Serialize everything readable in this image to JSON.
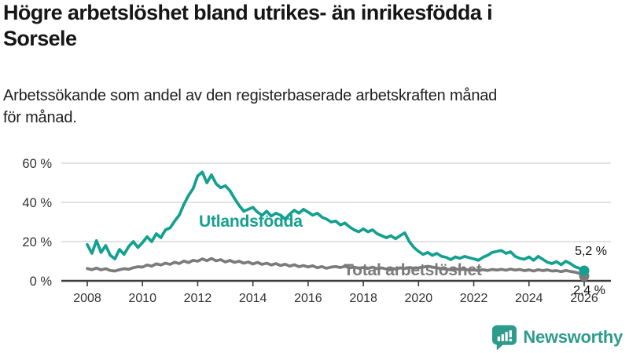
{
  "chart_data": {
    "type": "line",
    "title": "Högre arbetslöshet bland utrikes- än inrikesfödda i\nSorsele",
    "subtitle": "Arbetssökande som andel av den registerbaserade arbetskraften månad\nför månad.",
    "xlabel": "",
    "ylabel": "",
    "ylim": [
      0,
      62
    ],
    "xlim": [
      2007,
      2027
    ],
    "grid": true,
    "legend_position": "inline-labels-on-chart",
    "x_unit": "year-month",
    "x_start": 2008,
    "x_step_months": 2,
    "x_tick_values": [
      2008,
      2010,
      2012,
      2014,
      2016,
      2018,
      2020,
      2022,
      2024,
      2026
    ],
    "x_tick_labels": [
      "2008",
      "2010",
      "2012",
      "2014",
      "2016",
      "2018",
      "2020",
      "2022",
      "2024",
      "2026"
    ],
    "y_tick_values": [
      0,
      20,
      40,
      60
    ],
    "y_tick_labels": [
      "0 %",
      "20 %",
      "40 %",
      "60 %"
    ],
    "series": [
      {
        "name": "Utlandsfödda",
        "color": "#14A090",
        "end_label": "5,2 %",
        "end_value": 5.2,
        "values": [
          18.5,
          14.0,
          20.5,
          14.5,
          18.0,
          13.0,
          11.2,
          16.0,
          13.5,
          17.5,
          20.0,
          17.0,
          19.5,
          22.5,
          20.0,
          24.0,
          22.0,
          26.0,
          27.0,
          30.5,
          33.5,
          39.0,
          43.5,
          47.0,
          53.5,
          55.5,
          50.0,
          54.0,
          49.5,
          47.5,
          48.5,
          46.0,
          42.0,
          38.5,
          35.5,
          36.5,
          37.5,
          35.0,
          33.5,
          35.5,
          33.0,
          34.5,
          33.5,
          31.5,
          34.0,
          36.0,
          34.5,
          36.5,
          35.0,
          33.5,
          34.5,
          32.5,
          31.5,
          30.0,
          30.5,
          28.5,
          29.5,
          27.5,
          26.0,
          25.0,
          26.5,
          25.0,
          26.0,
          24.0,
          23.0,
          22.0,
          23.0,
          21.5,
          23.0,
          24.5,
          20.0,
          17.0,
          15.0,
          13.5,
          14.5,
          13.0,
          14.0,
          12.5,
          12.0,
          10.8,
          12.2,
          11.5,
          12.5,
          11.8,
          11.2,
          10.5,
          12.0,
          13.0,
          14.5,
          15.0,
          15.5,
          14.0,
          14.8,
          12.5,
          11.5,
          11.0,
          12.2,
          10.5,
          12.5,
          11.0,
          9.5,
          8.8,
          9.8,
          8.2,
          10.0,
          8.8,
          7.2,
          6.4,
          5.2
        ]
      },
      {
        "name": "Total arbetslöshet",
        "color": "#7b7b7b",
        "end_label": "2,4 %",
        "end_value": 2.4,
        "values": [
          6.3,
          5.7,
          6.5,
          5.6,
          6.2,
          5.3,
          5.0,
          5.7,
          6.2,
          5.9,
          6.7,
          7.2,
          7.0,
          8.1,
          7.5,
          8.7,
          8.1,
          9.0,
          8.4,
          9.5,
          8.8,
          10.1,
          9.3,
          10.5,
          10.0,
          11.2,
          10.3,
          11.4,
          10.2,
          10.8,
          9.6,
          10.4,
          9.4,
          10.0,
          9.0,
          9.6,
          8.6,
          9.4,
          8.4,
          9.0,
          8.1,
          8.8,
          7.8,
          8.5,
          7.5,
          8.2,
          7.2,
          7.8,
          7.1,
          7.7,
          6.7,
          7.3,
          6.4,
          7.0,
          7.3,
          6.8,
          7.4,
          6.6,
          7.0,
          6.4,
          6.8,
          6.3,
          7.0,
          6.2,
          6.6,
          6.0,
          6.4,
          6.0,
          6.6,
          6.2,
          6.8,
          6.4,
          6.6,
          7.0,
          7.4,
          7.0,
          6.6,
          6.2,
          6.0,
          5.6,
          6.1,
          5.7,
          5.9,
          5.5,
          5.6,
          5.2,
          5.7,
          5.3,
          5.8,
          5.5,
          5.9,
          5.4,
          6.0,
          5.5,
          5.8,
          5.2,
          5.6,
          5.0,
          5.7,
          5.2,
          5.6,
          5.0,
          5.2,
          4.7,
          5.3,
          4.8,
          4.4,
          3.8,
          2.4
        ]
      }
    ],
    "colors": {
      "grid": "#d9d9d9",
      "axis": "#3c3c3c",
      "tick_text": "#333333"
    }
  },
  "branding": {
    "logo_text": "Newsworthy",
    "logo_color": "#2D9C8D"
  }
}
